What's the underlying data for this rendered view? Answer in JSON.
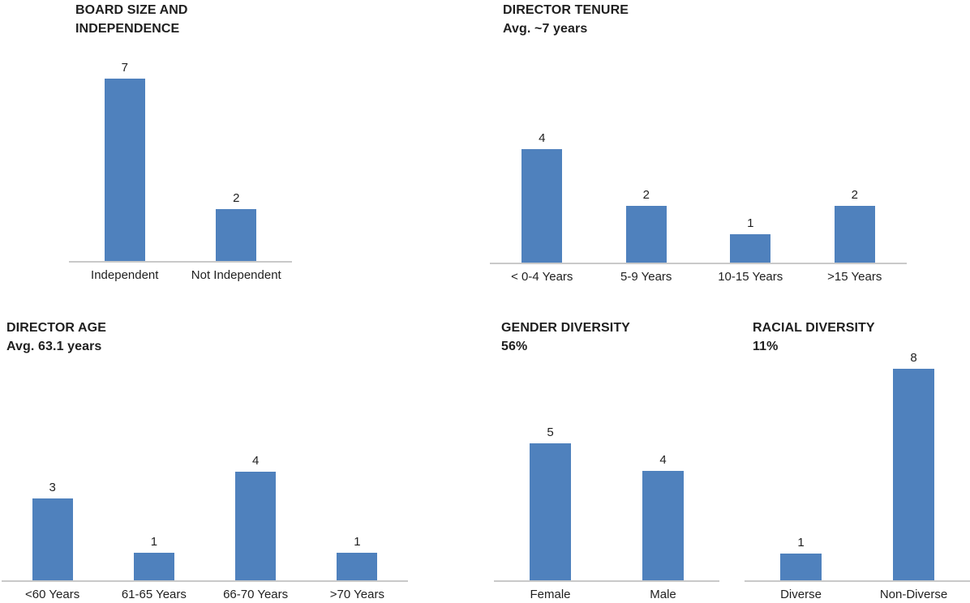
{
  "page": {
    "background": "#ffffff",
    "bar_color": "#4f81bd",
    "axis_color": "#c9c9c9",
    "text_color": "#1f1f1f"
  },
  "chart_data": [
    {
      "id": "board-size-independence",
      "type": "bar",
      "title": "BOARD SIZE AND INDEPENDENCE",
      "title_lines": [
        "BOARD SIZE AND",
        "INDEPENDENCE"
      ],
      "subtitle": "",
      "categories": [
        "Independent",
        "Not Independent"
      ],
      "values": [
        7,
        2
      ],
      "ylim": [
        0,
        7
      ],
      "grid": false,
      "legend": "none",
      "data_labels": true
    },
    {
      "id": "director-tenure",
      "type": "bar",
      "title": "DIRECTOR TENURE",
      "title_lines": [
        "DIRECTOR TENURE",
        "Avg. ~7 years"
      ],
      "subtitle": "Avg. ~7 years",
      "categories": [
        "< 0-4 Years",
        "5-9 Years",
        "10-15 Years",
        ">15 Years"
      ],
      "values": [
        4,
        2,
        1,
        2
      ],
      "ylim": [
        0,
        4
      ],
      "grid": false,
      "legend": "none",
      "data_labels": true
    },
    {
      "id": "director-age",
      "type": "bar",
      "title": "DIRECTOR AGE",
      "title_lines": [
        "DIRECTOR AGE",
        "Avg. 63.1 years"
      ],
      "subtitle": "Avg. 63.1 years",
      "categories": [
        "<60 Years",
        "61-65 Years",
        "66-70 Years",
        ">70 Years"
      ],
      "values": [
        3,
        1,
        4,
        1
      ],
      "ylim": [
        0,
        4
      ],
      "grid": false,
      "legend": "none",
      "data_labels": true
    },
    {
      "id": "gender-diversity",
      "type": "bar",
      "title": "GENDER DIVERSITY",
      "title_lines": [
        "GENDER DIVERSITY",
        "56%"
      ],
      "subtitle": "56%",
      "categories": [
        "Female",
        "Male"
      ],
      "values": [
        5,
        4
      ],
      "ylim": [
        0,
        5
      ],
      "grid": false,
      "legend": "none",
      "data_labels": true
    },
    {
      "id": "racial-diversity",
      "type": "bar",
      "title": "RACIAL DIVERSITY",
      "title_lines": [
        "RACIAL DIVERSITY",
        "11%"
      ],
      "subtitle": "11%",
      "categories": [
        "Diverse",
        "Non-Diverse"
      ],
      "values": [
        1,
        8
      ],
      "ylim": [
        0,
        8
      ],
      "grid": false,
      "legend": "none",
      "data_labels": true
    }
  ]
}
